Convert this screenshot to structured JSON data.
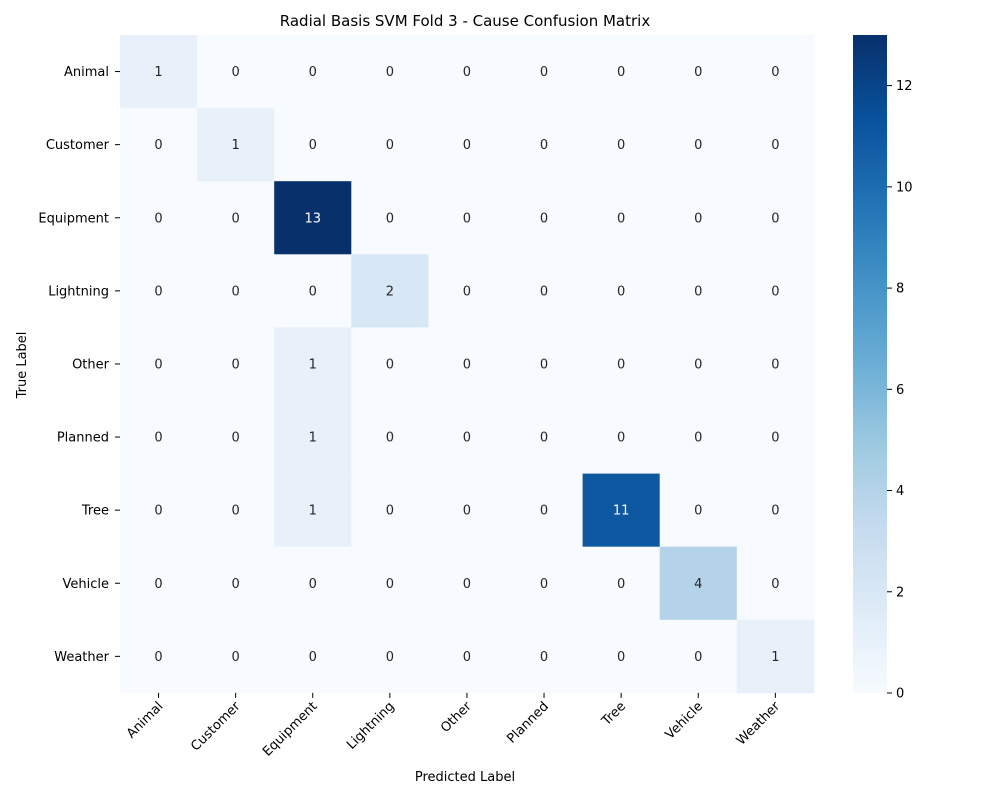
{
  "chart_data": {
    "type": "heatmap",
    "title": "Radial Basis SVM Fold 3 - Cause Confusion Matrix",
    "xlabel": "Predicted Label",
    "ylabel": "True Label",
    "x_categories": [
      "Animal",
      "Customer",
      "Equipment",
      "Lightning",
      "Other",
      "Planned",
      "Tree",
      "Vehicle",
      "Weather"
    ],
    "y_categories": [
      "Animal",
      "Customer",
      "Equipment",
      "Lightning",
      "Other",
      "Planned",
      "Tree",
      "Vehicle",
      "Weather"
    ],
    "values": [
      [
        1,
        0,
        0,
        0,
        0,
        0,
        0,
        0,
        0
      ],
      [
        0,
        1,
        0,
        0,
        0,
        0,
        0,
        0,
        0
      ],
      [
        0,
        0,
        13,
        0,
        0,
        0,
        0,
        0,
        0
      ],
      [
        0,
        0,
        0,
        2,
        0,
        0,
        0,
        0,
        0
      ],
      [
        0,
        0,
        1,
        0,
        0,
        0,
        0,
        0,
        0
      ],
      [
        0,
        0,
        1,
        0,
        0,
        0,
        0,
        0,
        0
      ],
      [
        0,
        0,
        1,
        0,
        0,
        0,
        11,
        0,
        0
      ],
      [
        0,
        0,
        0,
        0,
        0,
        0,
        0,
        4,
        0
      ],
      [
        0,
        0,
        0,
        0,
        0,
        0,
        0,
        0,
        1
      ]
    ],
    "colorbar": {
      "min": 0,
      "max": 13,
      "ticks": [
        0,
        2,
        4,
        6,
        8,
        10,
        12
      ],
      "colormap": "Blues"
    },
    "colormap_stops": [
      "#f7fbff",
      "#deebf7",
      "#c6dbef",
      "#9ecae1",
      "#6baed6",
      "#4292c6",
      "#2171b5",
      "#08519c",
      "#08306b"
    ],
    "annotation_colors": {
      "dark": "#262626",
      "light": "#ffffff"
    }
  }
}
